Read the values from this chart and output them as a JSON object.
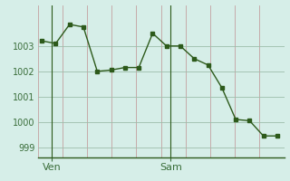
{
  "x_values": [
    0,
    1,
    2,
    3,
    4,
    5,
    6,
    7,
    8,
    9,
    10,
    11,
    12,
    13,
    14,
    15,
    16,
    17
  ],
  "y_values": [
    1003.2,
    1003.1,
    1003.85,
    1003.75,
    1002.0,
    1002.05,
    1002.15,
    1002.15,
    1003.5,
    1003.0,
    1003.0,
    1002.5,
    1002.25,
    1001.35,
    1000.1,
    1000.05,
    999.45,
    999.45
  ],
  "line_color": "#2d5a1b",
  "marker_color": "#2d5a1b",
  "bg_color": "#d6eee8",
  "vgrid_color": "#c4a0a0",
  "hgrid_color": "#9dbdaa",
  "axis_label_color": "#3a6e3a",
  "bottom_spine_color": "#2d5a1b",
  "ylim": [
    998.6,
    1004.6
  ],
  "yticks": [
    999,
    1000,
    1001,
    1002,
    1003
  ],
  "xlim": [
    -0.3,
    17.5
  ],
  "ven_x": 0.7,
  "sam_x": 9.3,
  "ven_label": "Ven",
  "sam_label": "Sam",
  "tick_fontsize": 7,
  "label_fontsize": 8,
  "n_vgrid": 10,
  "n_hgrid": 5
}
